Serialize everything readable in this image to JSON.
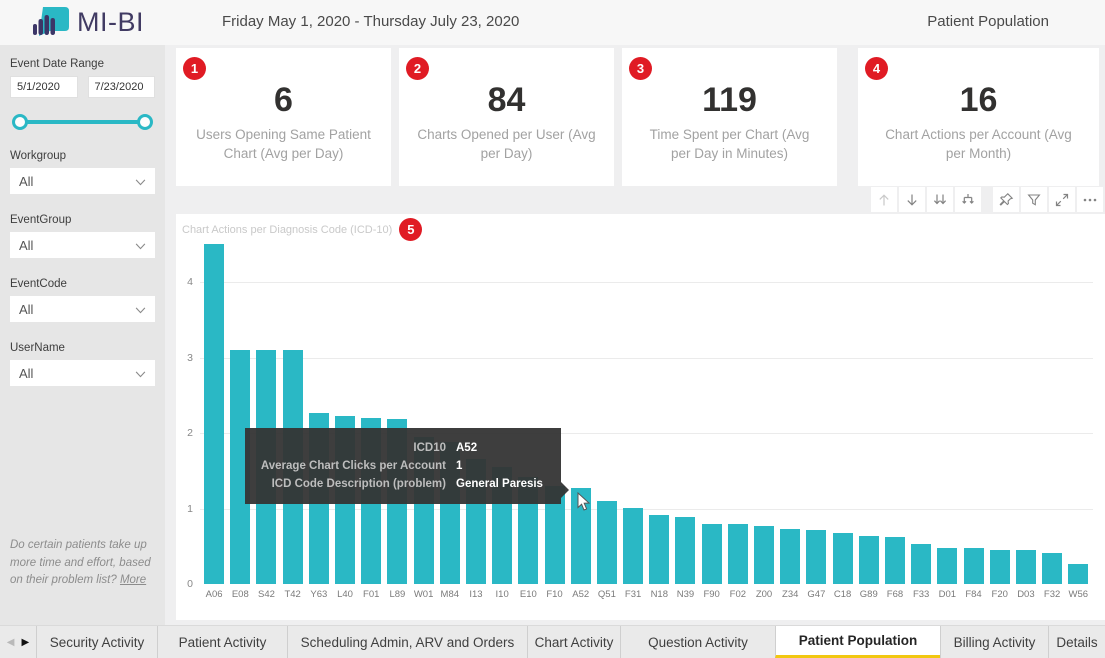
{
  "colors": {
    "accent": "#2ab8c5",
    "badge_red": "#e01b24",
    "active_tab_underline": "#f2c811",
    "bar_color": "#2ab8c5"
  },
  "header": {
    "logo_text": "MI-BI",
    "date_range": "Friday May 1, 2020 - Thursday July 23, 2020",
    "page_title": "Patient Population"
  },
  "sidebar": {
    "date_filter": {
      "label": "Event Date Range",
      "start": "5/1/2020",
      "end": "7/23/2020"
    },
    "filters": [
      {
        "label": "Workgroup",
        "value": "All"
      },
      {
        "label": "EventGroup",
        "value": "All"
      },
      {
        "label": "EventCode",
        "value": "All"
      },
      {
        "label": "UserName",
        "value": "All"
      }
    ],
    "footnote": {
      "text": "Do certain patients take up more time and effort, based on their problem list? ",
      "link": "More"
    }
  },
  "kpi_cards": [
    {
      "badge": "1",
      "value": "6",
      "label": "Users Opening Same Patient Chart (Avg per Day)"
    },
    {
      "badge": "2",
      "value": "84",
      "label": "Charts Opened per User (Avg per Day)"
    },
    {
      "badge": "3",
      "value": "119",
      "label": "Time Spent per Chart (Avg per Day in Minutes)"
    },
    {
      "badge": "4",
      "value": "16",
      "label": "Chart Actions per Account (Avg per Month)"
    }
  ],
  "toolbar": {
    "icons": [
      {
        "name": "drill-up",
        "disabled": true
      },
      {
        "name": "drill-down",
        "disabled": false
      },
      {
        "name": "show-next-level",
        "disabled": false
      },
      {
        "name": "expand-all",
        "disabled": false
      },
      {
        "name": "pin",
        "disabled": false,
        "gap": true
      },
      {
        "name": "filter",
        "disabled": false
      },
      {
        "name": "focus-mode",
        "disabled": false
      },
      {
        "name": "more-options",
        "disabled": false
      }
    ]
  },
  "chart": {
    "title": "Chart Actions per Diagnosis Code (ICD-10)",
    "badge": "5"
  },
  "chart_data": {
    "type": "bar",
    "title": "Chart Actions per Diagnosis Code (ICD-10)",
    "xlabel": "",
    "ylabel": "",
    "categories": [
      "A06",
      "E08",
      "S42",
      "T42",
      "Y63",
      "L40",
      "F01",
      "L89",
      "W01",
      "M84",
      "I13",
      "I10",
      "E10",
      "F10",
      "A52",
      "Q51",
      "F31",
      "N18",
      "N39",
      "F90",
      "F02",
      "Z00",
      "Z34",
      "G47",
      "C18",
      "G89",
      "F68",
      "F33",
      "D01",
      "F84",
      "F20",
      "D03",
      "F32",
      "W56"
    ],
    "values": [
      4.5,
      3.1,
      3.1,
      3.1,
      2.27,
      2.23,
      2.2,
      2.18,
      1.95,
      1.88,
      1.65,
      1.55,
      1.42,
      1.3,
      1.27,
      1.1,
      1.0,
      0.92,
      0.89,
      0.8,
      0.79,
      0.77,
      0.73,
      0.71,
      0.67,
      0.63,
      0.62,
      0.53,
      0.48,
      0.48,
      0.45,
      0.45,
      0.41,
      0.26
    ],
    "ylim": [
      0,
      4.6
    ],
    "yticks": [
      0,
      1,
      2,
      3,
      4
    ],
    "grid": true,
    "legend": "none"
  },
  "tooltip": {
    "rows": [
      {
        "label": "ICD10",
        "value": "A52"
      },
      {
        "label": "Average Chart Clicks per Account",
        "value": "1"
      },
      {
        "label": "ICD Code Description (problem)",
        "value": "General Paresis"
      }
    ]
  },
  "tabs": {
    "items": [
      {
        "label": "Security Activity",
        "active": false
      },
      {
        "label": "Patient Activity",
        "active": false
      },
      {
        "label": "Scheduling Admin, ARV and Orders",
        "active": false
      },
      {
        "label": "Chart Activity",
        "active": false
      },
      {
        "label": "Question Activity",
        "active": false
      },
      {
        "label": "Patient Population",
        "active": true
      },
      {
        "label": "Billing Activity",
        "active": false
      },
      {
        "label": "Details",
        "active": false
      }
    ]
  }
}
